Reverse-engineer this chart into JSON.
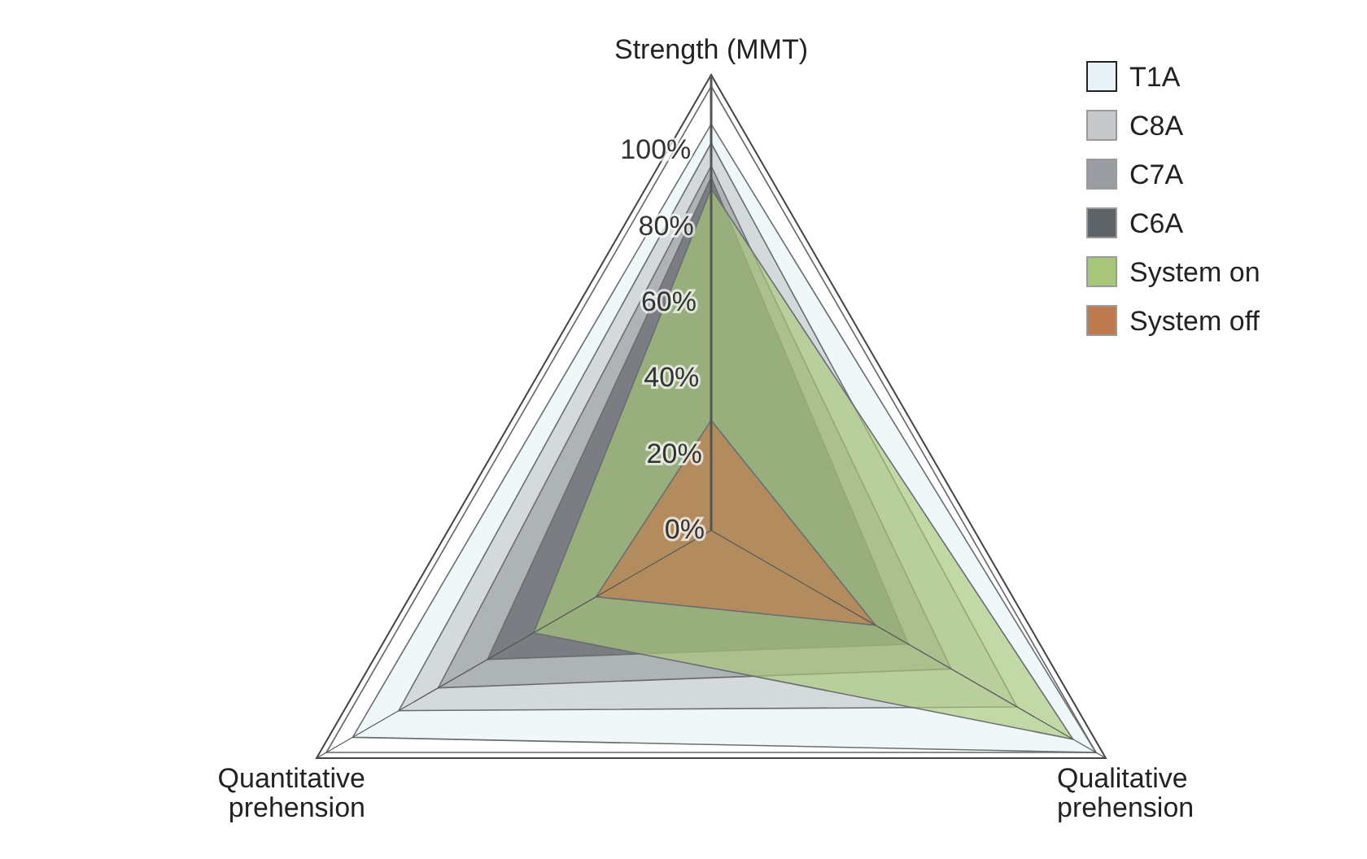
{
  "chart_data": {
    "type": "radar",
    "categories": [
      "Strength (MMT)",
      "Qualitative\nprehension",
      "Quantitative\nprehension"
    ],
    "series": [
      {
        "name": "T1A",
        "color": "#e6f2f5",
        "values": [
          107,
          117,
          109
        ]
      },
      {
        "name": "C8A",
        "color": "#c5c9cc",
        "values": [
          102,
          93,
          95
        ]
      },
      {
        "name": "C7A",
        "color": "#9a9ea2",
        "values": [
          96,
          73,
          83
        ]
      },
      {
        "name": "C6A",
        "color": "#5e6368",
        "values": [
          93,
          60,
          68
        ]
      },
      {
        "name": "System on",
        "color": "#a9c77a",
        "values": [
          90,
          110,
          54
        ]
      },
      {
        "name": "System off",
        "color": "#c07a4f",
        "values": [
          29,
          50,
          35
        ]
      }
    ],
    "ylim": [
      0,
      120
    ],
    "yticks": [
      {
        "value": 0,
        "label": "0%"
      },
      {
        "value": 20,
        "label": "20%"
      },
      {
        "value": 40,
        "label": "40%"
      },
      {
        "value": 60,
        "label": "60%"
      },
      {
        "value": 80,
        "label": "80%"
      },
      {
        "value": 100,
        "label": "100%"
      }
    ],
    "legend": "top right"
  }
}
